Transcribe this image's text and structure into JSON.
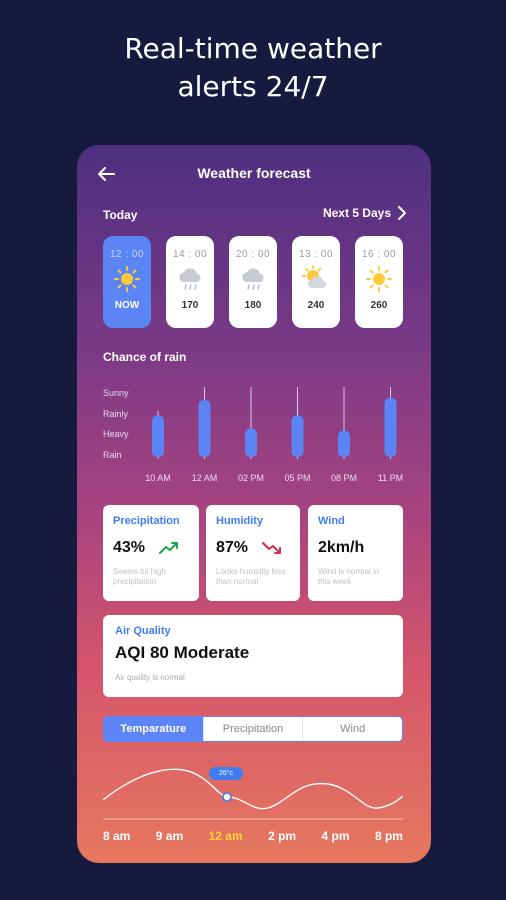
{
  "promo": {
    "line1": "Real-time weather",
    "line2": "alerts 24/7"
  },
  "header": {
    "back_icon": "arrow-left-icon",
    "title": "Weather forecast"
  },
  "forecast": {
    "today_label": "Today",
    "next_label": "Next 5 Days",
    "hours": [
      {
        "time": "12 : 00",
        "icon": "sun-icon",
        "value": "NOW",
        "active": true
      },
      {
        "time": "14 : 00",
        "icon": "rain-cloud-icon",
        "value": "170",
        "active": false
      },
      {
        "time": "20 : 00",
        "icon": "rain-cloud-icon",
        "value": "180",
        "active": false
      },
      {
        "time": "13 : 00",
        "icon": "partly-cloudy-icon",
        "value": "240",
        "active": false
      },
      {
        "time": "16 : 00",
        "icon": "sun-icon",
        "value": "260",
        "active": false
      }
    ]
  },
  "rain": {
    "title": "Chance of rain",
    "legend": [
      "Sunny",
      "Rainly",
      "Heavy",
      "Rain"
    ]
  },
  "chart_data": {
    "type": "bar",
    "title": "Chance of rain",
    "categories": [
      "10 AM",
      "12 AM",
      "02 PM",
      "05 PM",
      "08 PM",
      "11 PM"
    ],
    "y_labels": [
      "Sunny",
      "Rainly",
      "Heavy",
      "Rain"
    ],
    "bars": [
      {
        "x": "10 AM",
        "range_top": 1.1,
        "range_bottom": 3.3,
        "body_top": 1.3,
        "body_bottom": 3.2
      },
      {
        "x": "12 AM",
        "range_top": 0.0,
        "range_bottom": 3.3,
        "body_top": 0.6,
        "body_bottom": 3.2
      },
      {
        "x": "02 PM",
        "range_top": 0.0,
        "range_bottom": 3.3,
        "body_top": 1.9,
        "body_bottom": 3.2
      },
      {
        "x": "05 PM",
        "range_top": 0.0,
        "range_bottom": 3.3,
        "body_top": 1.3,
        "body_bottom": 3.2
      },
      {
        "x": "08 PM",
        "range_top": 0.0,
        "range_bottom": 3.3,
        "body_top": 2.0,
        "body_bottom": 3.2
      },
      {
        "x": "11 PM",
        "range_top": 0.0,
        "range_bottom": 3.3,
        "body_top": 0.5,
        "body_bottom": 3.2
      }
    ],
    "bar_color": "#5b84f5"
  },
  "stats": [
    {
      "title": "Precipitation",
      "value": "43%",
      "trend": "trend-up-icon",
      "trend_color": "#1fa24a",
      "note": "Seems bit high precipitation"
    },
    {
      "title": "Humidity",
      "value": "87%",
      "trend": "trend-down-icon",
      "trend_color": "#d62c4b",
      "note": "Looks humidity less than normal"
    },
    {
      "title": "Wind",
      "value": "2km/h",
      "trend": "",
      "trend_color": "",
      "note": "Wind is normal in this week"
    }
  ],
  "air_quality": {
    "title": "Air Quality",
    "value": "AQI 80 Moderate",
    "note": "Air quality is normal"
  },
  "tabs": [
    {
      "label": "Temparature",
      "active": true
    },
    {
      "label": "Precipitation",
      "active": false
    },
    {
      "label": "Wind",
      "active": false
    }
  ],
  "temp_chart": {
    "badge": "26°c",
    "times": [
      "8 am",
      "9 am",
      "12 am",
      "2 pm",
      "4 pm",
      "8 pm"
    ],
    "current_index": 2
  },
  "colors": {
    "accent": "#5b84f5",
    "link_blue": "#3f7df2",
    "current_time": "#ffd43b",
    "background": "#161a3e"
  }
}
